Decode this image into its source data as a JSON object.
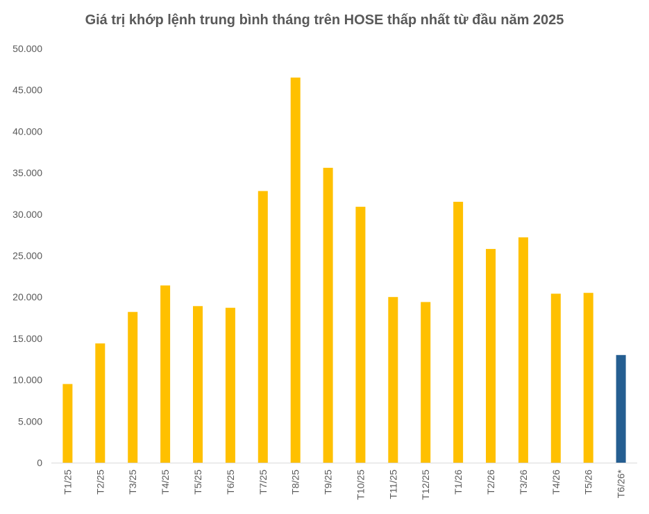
{
  "chart_data": {
    "type": "bar",
    "title": "Giá trị khớp lệnh trung bình tháng trên HOSE thấp nhất từ đầu năm 2025",
    "xlabel": "",
    "ylabel": "",
    "categories": [
      "T1/25",
      "T2/25",
      "T3/25",
      "T4/25",
      "T5/25",
      "T6/25",
      "T7/25",
      "T8/25",
      "T9/25",
      "T10/25",
      "T11/25",
      "T12/25",
      "T1/26",
      "T2/26",
      "T3/26",
      "T4/26",
      "T5/26",
      "T6/26*"
    ],
    "values": [
      9500,
      14400,
      18200,
      21400,
      18900,
      18700,
      32800,
      46500,
      35600,
      30900,
      20000,
      19400,
      31500,
      25800,
      27200,
      20400,
      20500,
      13000
    ],
    "ylim": [
      0,
      50000
    ],
    "yticks": [
      "0",
      "5.000",
      "10.000",
      "15.000",
      "20.000",
      "25.000",
      "30.000",
      "35.000",
      "40.000",
      "45.000",
      "50.000"
    ],
    "yticks_values": [
      0,
      5000,
      10000,
      15000,
      20000,
      25000,
      30000,
      35000,
      40000,
      45000,
      50000
    ],
    "grid": false,
    "legend": "none",
    "colors": {
      "default": "#FFC000",
      "highlight": "#255E91",
      "axis": "#D9D9D9",
      "text": "#595959"
    },
    "highlight_index": 17
  }
}
